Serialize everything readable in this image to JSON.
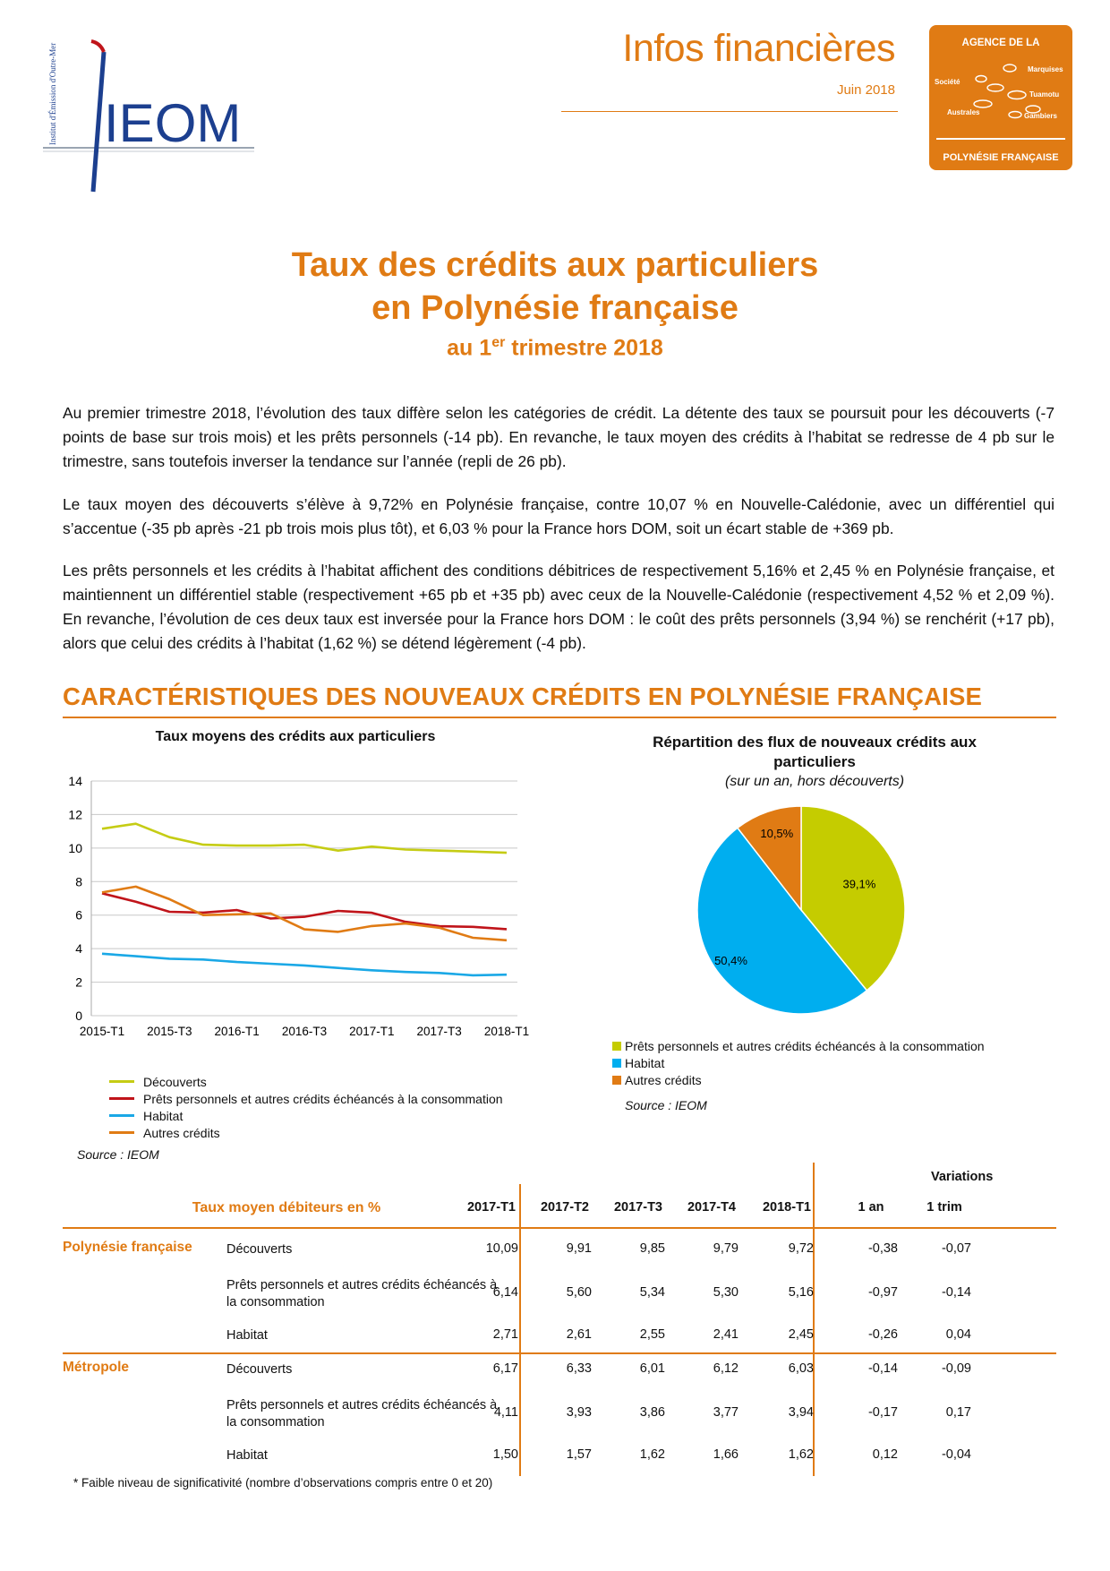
{
  "header": {
    "brand": "IEOM",
    "brand_vertical": "Institut d'Émission d'Outre-Mer",
    "doc_type": "Infos financières",
    "date": "Juin 2018",
    "agency": {
      "top": "AGENCE DE LA",
      "bottom": "POLYNÉSIE FRANÇAISE",
      "islands": [
        "Marquises",
        "Société",
        "Tuamotu",
        "Australes",
        "Gambiers"
      ]
    }
  },
  "title": {
    "line1": "Taux des crédits aux particuliers",
    "line2": "en Polynésie française",
    "line3_pre": "au 1",
    "line3_sup": "er",
    "line3_post": " trimestre 2018"
  },
  "paragraphs": [
    "Au premier trimestre 2018, l’évolution des taux diffère selon les catégories de crédit. La détente des taux se poursuit pour les découverts (-7 points de base sur trois mois) et les prêts personnels (-14 pb). En revanche, le taux moyen des crédits à l’habitat se redresse de 4 pb sur le trimestre, sans toutefois inverser la tendance sur l’année (repli de 26 pb).",
    "Le taux moyen des découverts s’élève à 9,72% en Polynésie française, contre 10,07 % en Nouvelle-Calédonie, avec un différentiel qui s’accentue (-35 pb après -21 pb trois mois plus tôt), et 6,03 % pour la France hors DOM, soit un écart stable de +369 pb.",
    "Les prêts personnels et les crédits à l’habitat affichent des conditions débitrices de respectivement 5,16% et 2,45 % en Polynésie française, et maintiennent un différentiel stable (respectivement +65 pb et +35 pb) avec ceux de la Nouvelle-Calédonie (respectivement 4,52 % et 2,09 %). En revanche, l’évolution de ces deux taux est inversée pour la France hors DOM : le coût des prêts personnels (3,94 %) se renchérit (+17 pb), alors que celui des crédits à l’habitat (1,62 %) se détend légèrement (-4 pb)."
  ],
  "section_title": "CARACTÉRISTIQUES DES NOUVEAUX CRÉDITS EN POLYNÉSIE FRANÇAISE",
  "chart_data": [
    {
      "type": "line",
      "title": "Taux moyens des crédits aux particuliers",
      "x": [
        "2015-T1",
        "2015-T2",
        "2015-T3",
        "2015-T4",
        "2016-T1",
        "2016-T2",
        "2016-T3",
        "2016-T4",
        "2017-T1",
        "2017-T2",
        "2017-T3",
        "2017-T4",
        "2018-T1"
      ],
      "x_tick_labels": [
        "2015-T1",
        "2015-T3",
        "2016-T1",
        "2016-T3",
        "2017-T1",
        "2017-T3",
        "2018-T1"
      ],
      "ylim": [
        0,
        14
      ],
      "y_ticks": [
        0,
        2,
        4,
        6,
        8,
        10,
        12,
        14
      ],
      "grid": true,
      "legend": "bottom",
      "series": [
        {
          "name": "Découverts",
          "color": "#c5cc14",
          "values": [
            11.15,
            11.45,
            10.65,
            10.2,
            10.15,
            10.15,
            10.2,
            9.85,
            10.09,
            9.91,
            9.85,
            9.79,
            9.72
          ]
        },
        {
          "name": "Prêts personnels et autres crédits échéancés à la consommation",
          "color": "#c0141a",
          "values": [
            7.3,
            6.8,
            6.2,
            6.15,
            6.3,
            5.8,
            5.9,
            6.25,
            6.14,
            5.6,
            5.34,
            5.3,
            5.16
          ]
        },
        {
          "name": "Habitat",
          "color": "#1aa8e6",
          "values": [
            3.7,
            3.55,
            3.4,
            3.35,
            3.2,
            3.1,
            3.0,
            2.85,
            2.71,
            2.61,
            2.55,
            2.41,
            2.45
          ]
        },
        {
          "name": "Autres crédits",
          "color": "#e07b14",
          "values": [
            7.35,
            7.7,
            6.95,
            6.0,
            6.05,
            6.1,
            5.15,
            5.0,
            5.35,
            5.5,
            5.25,
            4.65,
            4.5
          ]
        }
      ],
      "source": "Source : IEOM"
    },
    {
      "type": "pie",
      "title": "Répartition des flux de nouveaux crédits aux particuliers",
      "subtitle": "(sur un an, hors découverts)",
      "slices": [
        {
          "name": "Prêts personnels et autres crédits échéancés à la consommation",
          "value": 39.1,
          "label": "39,1%",
          "color": "#c5cc00"
        },
        {
          "name": "Habitat",
          "value": 50.4,
          "label": "50,4%",
          "color": "#00aeef"
        },
        {
          "name": "Autres crédits",
          "value": 10.5,
          "label": "10,5%",
          "color": "#e07b14"
        }
      ],
      "legend": "bottom",
      "source": "Source : IEOM"
    }
  ],
  "table": {
    "caption": "Taux moyen débiteurs en %",
    "variations_label": "Variations",
    "columns": [
      "2017-T1",
      "2017-T2",
      "2017-T3",
      "2017-T4",
      "2018-T1",
      "1 an",
      "1 trim"
    ],
    "groups": [
      {
        "region": "Polynésie française",
        "rows": [
          {
            "label": "Découverts",
            "values": [
              "10,09",
              "9,91",
              "9,85",
              "9,79",
              "9,72",
              "-0,38",
              "-0,07"
            ]
          },
          {
            "label": "Prêts personnels et autres crédits échéancés à la consommation",
            "values": [
              "6,14",
              "5,60",
              "5,34",
              "5,30",
              "5,16",
              "-0,97",
              "-0,14"
            ]
          },
          {
            "label": "Habitat",
            "values": [
              "2,71",
              "2,61",
              "2,55",
              "2,41",
              "2,45",
              "-0,26",
              "0,04"
            ]
          }
        ]
      },
      {
        "region": "Métropole",
        "rows": [
          {
            "label": "Découverts",
            "values": [
              "6,17",
              "6,33",
              "6,01",
              "6,12",
              "6,03",
              "-0,14",
              "-0,09"
            ]
          },
          {
            "label": "Prêts personnels et autres crédits échéancés à la consommation",
            "values": [
              "4,11",
              "3,93",
              "3,86",
              "3,77",
              "3,94",
              "-0,17",
              "0,17"
            ]
          },
          {
            "label": "Habitat",
            "values": [
              "1,50",
              "1,57",
              "1,62",
              "1,66",
              "1,62",
              "0,12",
              "-0,04"
            ]
          }
        ]
      }
    ],
    "footnote": "* Faible niveau de significativité (nombre d’observations compris entre 0 et 20)"
  }
}
